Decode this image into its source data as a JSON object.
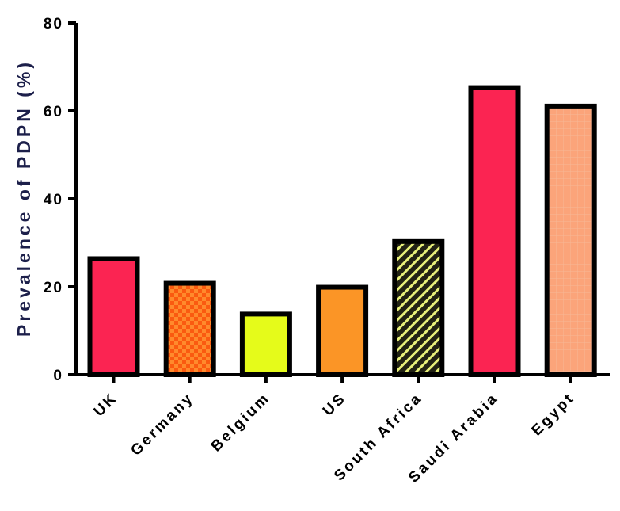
{
  "chart_data": {
    "type": "bar",
    "title": "",
    "xlabel": "",
    "ylabel": "Prevalence of PDPN (%)",
    "ylim": [
      0,
      80
    ],
    "yticks": [
      0,
      20,
      40,
      60,
      80
    ],
    "grid": false,
    "legend": "none",
    "categories": [
      "UK",
      "Germany",
      "Belgium",
      "US",
      "South Africa",
      "Saudi Arabia",
      "Egypt"
    ],
    "values": [
      26.4,
      20.8,
      13.8,
      19.9,
      30.3,
      65.3,
      61.1
    ],
    "colors": [
      "#fb2452",
      "#fa5a10",
      "#e5fb1a",
      "#fb9526",
      "#2a2a14",
      "#fb2452",
      "#fba47a"
    ],
    "patterns": [
      "solid",
      "checker",
      "solid",
      "solid",
      "diagonal-stripes",
      "solid",
      "grid"
    ]
  }
}
